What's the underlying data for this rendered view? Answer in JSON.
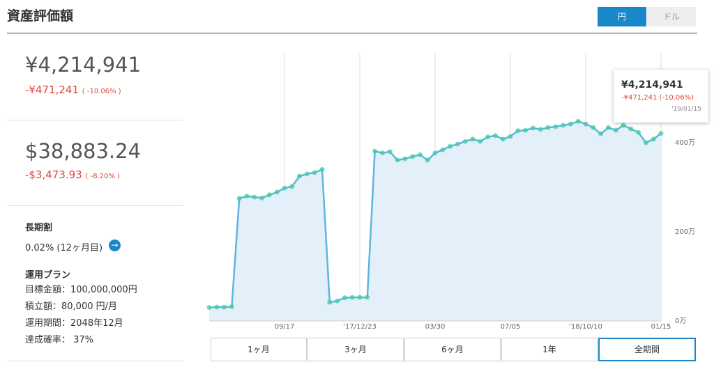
{
  "header": {
    "title": "資産評価額",
    "currency_options": [
      "円",
      "ドル"
    ]
  },
  "summary": {
    "jpy": {
      "value": "¥4,214,941",
      "change": "-¥471,241",
      "change_pct": "( -10.06% )"
    },
    "usd": {
      "value": "$38,883.24",
      "change": "-$3,473.93",
      "change_pct": "( -8.20% )"
    }
  },
  "discount": {
    "label": "長期割",
    "value": "0.02% (12ヶ月目)"
  },
  "plan": {
    "title": "運用プラン",
    "items": [
      "目標金額：100,000,000円",
      "積立額：80,000 円/月",
      "運用期間：2048年12月",
      "達成確率： 37%"
    ]
  },
  "tooltip": {
    "value": "¥4,214,941",
    "change": "-¥471,241 (-10.06%)",
    "date": "'19/01/15"
  },
  "range_buttons": [
    "1ヶ月",
    "3ヶ月",
    "6ヶ月",
    "1年",
    "全期間"
  ],
  "chart_data": {
    "type": "line",
    "categories": [
      null,
      null,
      null,
      null,
      null,
      null,
      null,
      null,
      null,
      null,
      "09/17",
      null,
      null,
      null,
      null,
      null,
      null,
      null,
      null,
      null,
      "'17/12/23",
      null,
      null,
      null,
      null,
      null,
      null,
      null,
      null,
      null,
      "03/30",
      null,
      null,
      null,
      null,
      null,
      null,
      null,
      null,
      null,
      "07/05",
      null,
      null,
      null,
      null,
      null,
      null,
      null,
      null,
      null,
      "'18/10/10",
      null,
      null,
      null,
      null,
      null,
      null,
      null,
      null,
      null,
      "01/15"
    ],
    "values": [
      300000,
      310000,
      310000,
      320000,
      2750000,
      2800000,
      2780000,
      2760000,
      2830000,
      2890000,
      2980000,
      3020000,
      3250000,
      3300000,
      3330000,
      3400000,
      420000,
      450000,
      520000,
      530000,
      530000,
      530000,
      3810000,
      3770000,
      3800000,
      3610000,
      3640000,
      3690000,
      3730000,
      3610000,
      3770000,
      3840000,
      3920000,
      3970000,
      4030000,
      4080000,
      4030000,
      4130000,
      4160000,
      4080000,
      4140000,
      4270000,
      4280000,
      4330000,
      4300000,
      4340000,
      4360000,
      4390000,
      4420000,
      4480000,
      4420000,
      4340000,
      4200000,
      4340000,
      4280000,
      4390000,
      4310000,
      4230000,
      4000000,
      4080000,
      4210000
    ],
    "color": "#5fb4df",
    "area_color": "#e4f0f9",
    "marker_color": "#3dcc9c",
    "ylim": [
      0,
      6000000
    ],
    "yticks": [
      {
        "value": 0,
        "label": "0万"
      },
      {
        "value": 2000000,
        "label": "200万"
      },
      {
        "value": 4000000,
        "label": "400万"
      }
    ]
  }
}
